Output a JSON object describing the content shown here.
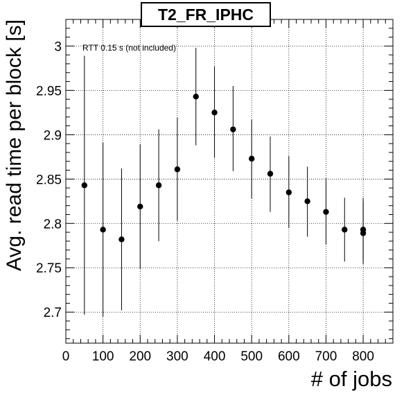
{
  "chart_data": {
    "type": "scatter",
    "title": "T2_FR_IPHC",
    "xlabel": "# of jobs",
    "ylabel": "Avg. read time per block [s]",
    "annotation": "RTT 0.15 s (not included)",
    "xlim": [
      0,
      880
    ],
    "ylim": [
      2.665,
      3.03
    ],
    "grid": true,
    "x_ticks": [
      0,
      100,
      200,
      300,
      400,
      500,
      600,
      700,
      800
    ],
    "y_ticks": [
      2.7,
      2.75,
      2.8,
      2.85,
      2.9,
      2.95,
      3
    ],
    "x_tick_labels": [
      "0",
      "100",
      "200",
      "300",
      "400",
      "500",
      "600",
      "700",
      "800"
    ],
    "y_tick_labels": [
      "2.7",
      "2.75",
      "2.8",
      "2.85",
      "2.9",
      "2.95",
      "3"
    ],
    "points": [
      {
        "x": 50,
        "y": 2.843,
        "ylow": 2.697,
        "yhigh": 2.989
      },
      {
        "x": 100,
        "y": 2.793,
        "ylow": 2.695,
        "yhigh": 2.891
      },
      {
        "x": 150,
        "y": 2.782,
        "ylow": 2.702,
        "yhigh": 2.862
      },
      {
        "x": 200,
        "y": 2.819,
        "ylow": 2.749,
        "yhigh": 2.889
      },
      {
        "x": 250,
        "y": 2.843,
        "ylow": 2.78,
        "yhigh": 2.906
      },
      {
        "x": 300,
        "y": 2.861,
        "ylow": 2.803,
        "yhigh": 2.919
      },
      {
        "x": 350,
        "y": 2.943,
        "ylow": 2.888,
        "yhigh": 2.998
      },
      {
        "x": 400,
        "y": 2.925,
        "ylow": 2.874,
        "yhigh": 2.977
      },
      {
        "x": 450,
        "y": 2.906,
        "ylow": 2.859,
        "yhigh": 2.955
      },
      {
        "x": 500,
        "y": 2.873,
        "ylow": 2.828,
        "yhigh": 2.917
      },
      {
        "x": 550,
        "y": 2.856,
        "ylow": 2.813,
        "yhigh": 2.898
      },
      {
        "x": 600,
        "y": 2.835,
        "ylow": 2.795,
        "yhigh": 2.876
      },
      {
        "x": 650,
        "y": 2.825,
        "ylow": 2.785,
        "yhigh": 2.864
      },
      {
        "x": 700,
        "y": 2.813,
        "ylow": 2.776,
        "yhigh": 2.851
      },
      {
        "x": 750,
        "y": 2.793,
        "ylow": 2.757,
        "yhigh": 2.829
      },
      {
        "x": 800,
        "y": 2.793,
        "ylow": 2.758,
        "yhigh": 2.829
      },
      {
        "x": 800,
        "y": 2.789,
        "ylow": 2.754,
        "yhigh": 2.824
      }
    ]
  }
}
